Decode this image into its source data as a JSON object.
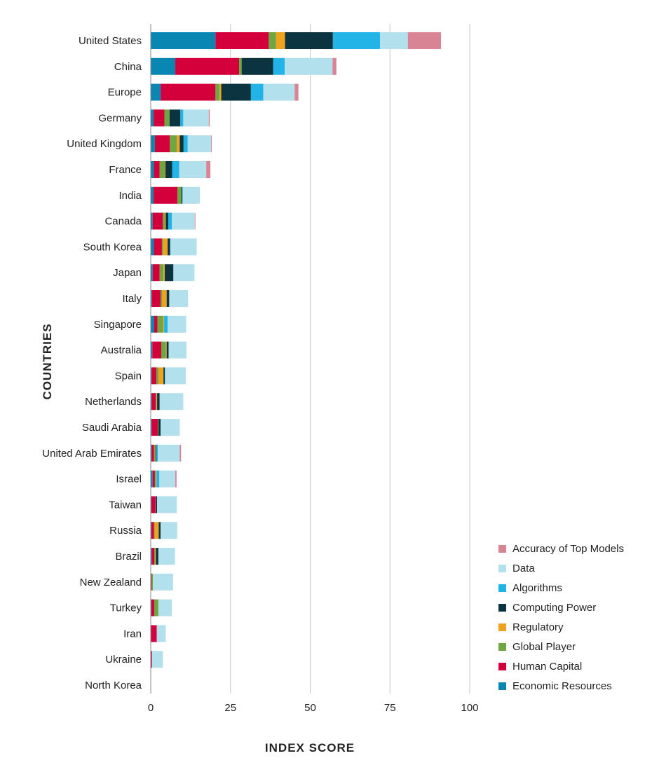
{
  "chart_data": {
    "type": "bar",
    "orientation": "horizontal",
    "stacked": true,
    "xlabel": "INDEX SCORE",
    "ylabel": "COUNTRIES",
    "xlim": [
      0,
      100
    ],
    "xticks": [
      0,
      25,
      50,
      75,
      100
    ],
    "grid": "vertical",
    "legend_position": "bottom-right",
    "categories": [
      "United States",
      "China",
      "Europe",
      "Germany",
      "United Kingdom",
      "France",
      "India",
      "Canada",
      "South Korea",
      "Japan",
      "Italy",
      "Singapore",
      "Australia",
      "Spain",
      "Netherlands",
      "Saudi Arabia",
      "United Arab Emirates",
      "Israel",
      "Taiwan",
      "Russia",
      "Brazil",
      "New Zealand",
      "Turkey",
      "Iran",
      "Ukraine",
      "North Korea"
    ],
    "series": [
      {
        "name": "Economic Resources",
        "color": "#0a86b3",
        "values": [
          20.3,
          7.7,
          3.1,
          0.9,
          1.3,
          1.0,
          0.9,
          0.6,
          1.0,
          0.6,
          0.4,
          1.1,
          0.5,
          0.3,
          0.3,
          0.3,
          0.3,
          0.6,
          0.2,
          0.2,
          0.3,
          0.1,
          0.2,
          0.1,
          0.1,
          0
        ]
      },
      {
        "name": "Human Capital",
        "color": "#d4003c",
        "values": [
          16.7,
          20.0,
          17.2,
          3.4,
          4.7,
          1.8,
          7.5,
          3.2,
          2.5,
          2.2,
          2.7,
          1.0,
          2.8,
          1.5,
          1.3,
          1.9,
          0.7,
          0.7,
          1.3,
          0.8,
          0.8,
          0.2,
          0.9,
          1.8,
          0.3,
          0
        ]
      },
      {
        "name": "Global Player",
        "color": "#6ea641",
        "values": [
          2.3,
          0.8,
          1.3,
          1.6,
          2.2,
          1.6,
          1.2,
          0.6,
          0.4,
          1.2,
          0.5,
          1.8,
          1.5,
          0.7,
          0.2,
          0.2,
          0.3,
          0.3,
          0.1,
          0.2,
          0.3,
          0.4,
          1.3,
          0,
          0,
          0
        ]
      },
      {
        "name": "Regulatory",
        "color": "#f0a21f",
        "values": [
          2.8,
          0,
          0.5,
          0,
          0.9,
          0.2,
          0,
          0.3,
          1.4,
          0.4,
          1.4,
          0.3,
          0.2,
          1.5,
          0.2,
          0,
          0.2,
          0.2,
          0,
          1.3,
          0.2,
          0,
          0,
          0,
          0,
          0
        ]
      },
      {
        "name": "Computing Power",
        "color": "#0b3440",
        "values": [
          15.0,
          9.9,
          9.3,
          3.4,
          1.2,
          2.1,
          0.3,
          0.8,
          0.8,
          2.7,
          0.8,
          0,
          0.6,
          0.4,
          0.8,
          0.7,
          0.3,
          0,
          0.4,
          0.6,
          0.8,
          0,
          0,
          0,
          0,
          0
        ]
      },
      {
        "name": "Algorithms",
        "color": "#22b4e7",
        "values": [
          14.8,
          3.6,
          3.9,
          0.9,
          1.3,
          2.2,
          0.1,
          1.1,
          0.1,
          0,
          0,
          1.1,
          0,
          0.1,
          0,
          0,
          0.4,
          0.9,
          0,
          0,
          0,
          0,
          0,
          0,
          0,
          0
        ]
      },
      {
        "name": "Data",
        "color": "#b2e0ec",
        "values": [
          8.7,
          15.0,
          9.8,
          8.0,
          7.3,
          8.5,
          5.4,
          7.2,
          8.2,
          6.6,
          5.9,
          5.8,
          5.6,
          6.5,
          7.4,
          6.0,
          6.9,
          5.0,
          6.2,
          5.2,
          5.2,
          6.3,
          4.2,
          2.8,
          3.4,
          0
        ]
      },
      {
        "name": "Accuracy of Top Models",
        "color": "#d98494",
        "values": [
          10.4,
          1.2,
          1.2,
          0.3,
          0.2,
          1.3,
          0,
          0.2,
          0,
          0,
          0,
          0,
          0,
          0,
          0,
          0,
          0.4,
          0.4,
          0,
          0,
          0,
          0,
          0,
          0,
          0,
          0
        ]
      }
    ],
    "legend_order": [
      "Accuracy of Top Models",
      "Data",
      "Algorithms",
      "Computing Power",
      "Regulatory",
      "Global Player",
      "Human Capital",
      "Economic Resources"
    ]
  }
}
